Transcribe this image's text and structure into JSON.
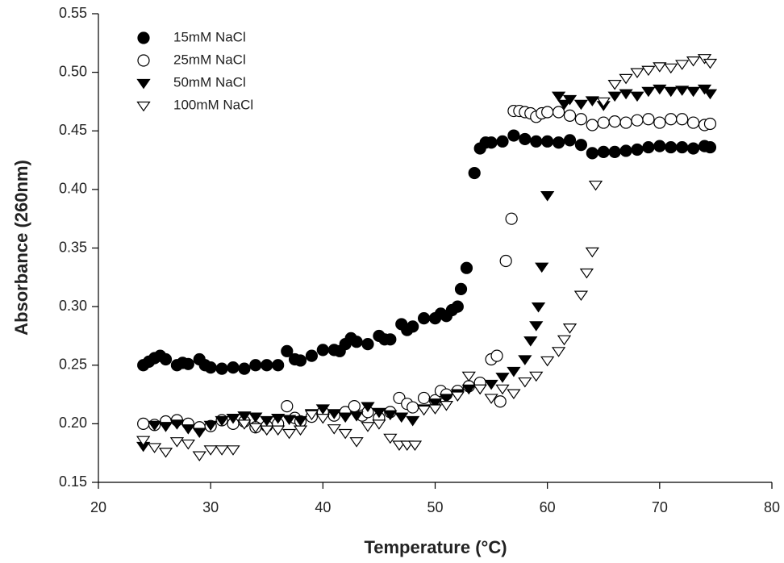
{
  "chart_data": {
    "type": "scatter",
    "x_label": "Temperature (°C)",
    "y_label": "Absorbance (260nm)",
    "xlim": [
      20,
      80
    ],
    "xticks": [
      20,
      30,
      40,
      50,
      60,
      70,
      80
    ],
    "ylim": [
      0.15,
      0.55
    ],
    "yticks": [
      0.15,
      {
        "value": 0.2,
        "label": "0.20"
      },
      0.25,
      {
        "value": 0.3,
        "label": "0.30"
      },
      0.35,
      {
        "value": 0.4,
        "label": "0.40"
      },
      0.45,
      {
        "value": 0.5,
        "label": "0.50"
      },
      0.55
    ],
    "legend": "top-left",
    "series": [
      {
        "name": "15mM NaCl",
        "color": "#000000",
        "marker": "circle",
        "filled": true,
        "x": [
          24,
          24.5,
          25,
          25.5,
          26,
          27,
          27.5,
          28,
          29,
          29.5,
          30,
          31,
          32,
          33,
          34,
          35,
          36,
          36.8,
          37.5,
          38,
          39,
          40,
          41,
          41.5,
          42,
          42.5,
          43,
          44,
          45,
          45.5,
          46,
          47,
          47.5,
          48,
          49,
          50,
          50.5,
          51,
          51.5,
          52,
          52.3,
          52.8,
          53.5,
          54,
          54.5,
          55,
          56,
          57,
          58,
          59,
          60,
          61,
          62,
          63,
          64,
          65,
          66,
          67,
          68,
          69,
          70,
          71,
          72,
          73,
          74,
          74.5
        ],
        "values": [
          0.25,
          0.253,
          0.256,
          0.258,
          0.255,
          0.25,
          0.252,
          0.251,
          0.255,
          0.25,
          0.248,
          0.247,
          0.248,
          0.247,
          0.25,
          0.25,
          0.25,
          0.262,
          0.255,
          0.254,
          0.258,
          0.263,
          0.263,
          0.262,
          0.268,
          0.273,
          0.27,
          0.268,
          0.275,
          0.272,
          0.272,
          0.285,
          0.28,
          0.283,
          0.29,
          0.29,
          0.294,
          0.292,
          0.297,
          0.3,
          0.315,
          0.333,
          0.414,
          0.435,
          0.44,
          0.44,
          0.441,
          0.446,
          0.443,
          0.441,
          0.441,
          0.44,
          0.442,
          0.438,
          0.431,
          0.432,
          0.432,
          0.433,
          0.434,
          0.436,
          0.437,
          0.436,
          0.436,
          0.435,
          0.437,
          0.436
        ]
      },
      {
        "name": "25mM NaCl",
        "color": "#000000",
        "marker": "circle",
        "filled": false,
        "x": [
          24,
          25,
          26,
          27,
          28,
          29,
          30,
          31,
          32,
          33,
          34,
          35,
          36,
          36.8,
          37.5,
          38,
          39,
          40,
          41,
          42,
          42.8,
          43.5,
          44,
          45,
          46,
          46.8,
          47.5,
          48,
          49,
          50,
          50.5,
          51,
          52,
          53,
          54,
          55,
          55.5,
          55.8,
          56.3,
          56.8,
          57,
          57.5,
          58,
          58.5,
          59,
          59.5,
          60,
          61,
          62,
          63,
          64,
          65,
          66,
          67,
          68,
          69,
          70,
          71,
          72,
          73,
          74,
          74.5
        ],
        "values": [
          0.2,
          0.199,
          0.202,
          0.203,
          0.2,
          0.197,
          0.198,
          0.203,
          0.2,
          0.202,
          0.197,
          0.198,
          0.2,
          0.215,
          0.205,
          0.202,
          0.206,
          0.21,
          0.207,
          0.21,
          0.215,
          0.207,
          0.21,
          0.205,
          0.21,
          0.222,
          0.217,
          0.214,
          0.222,
          0.22,
          0.228,
          0.225,
          0.228,
          0.232,
          0.235,
          0.255,
          0.258,
          0.219,
          0.339,
          0.375,
          0.467,
          0.467,
          0.466,
          0.465,
          0.462,
          0.465,
          0.466,
          0.466,
          0.463,
          0.46,
          0.455,
          0.457,
          0.458,
          0.457,
          0.459,
          0.46,
          0.457,
          0.46,
          0.46,
          0.457,
          0.455,
          0.456
        ]
      },
      {
        "name": "50mM NaCl",
        "color": "#000000",
        "marker": "triangle-down",
        "filled": true,
        "x": [
          24,
          25,
          26,
          27,
          28,
          29,
          30,
          31,
          32,
          33,
          34,
          35,
          36,
          37,
          38,
          39,
          40,
          41,
          42,
          43,
          44,
          45,
          46,
          47,
          48,
          49,
          50,
          51,
          52,
          53,
          54,
          55,
          56,
          57,
          58,
          58.5,
          59,
          59.2,
          59.5,
          60,
          61,
          61.5,
          62,
          63,
          64,
          65,
          66,
          67,
          68,
          69,
          70,
          71,
          72,
          73,
          74,
          74.5
        ],
        "values": [
          0.181,
          0.199,
          0.198,
          0.2,
          0.196,
          0.193,
          0.199,
          0.203,
          0.205,
          0.207,
          0.206,
          0.203,
          0.205,
          0.204,
          0.203,
          0.209,
          0.213,
          0.209,
          0.206,
          0.207,
          0.215,
          0.21,
          0.208,
          0.206,
          0.203,
          0.213,
          0.218,
          0.222,
          0.226,
          0.23,
          0.23,
          0.234,
          0.24,
          0.245,
          0.255,
          0.271,
          0.284,
          0.3,
          0.334,
          0.395,
          0.48,
          0.473,
          0.477,
          0.473,
          0.476,
          0.472,
          0.48,
          0.482,
          0.48,
          0.484,
          0.486,
          0.484,
          0.485,
          0.484,
          0.486,
          0.482
        ]
      },
      {
        "name": "100mM NaCl",
        "color": "#000000",
        "marker": "triangle-down",
        "filled": false,
        "x": [
          24,
          25,
          26,
          27,
          28,
          29,
          30,
          31,
          32,
          33,
          34,
          35,
          36,
          37,
          38,
          39,
          40,
          41,
          42,
          43,
          44,
          45,
          46,
          46.8,
          47.5,
          48.2,
          49,
          50,
          51,
          52,
          53,
          54,
          55,
          56,
          57,
          58,
          59,
          60,
          61,
          61.5,
          62,
          63,
          63.5,
          64,
          64.3,
          65,
          66,
          67,
          68,
          69,
          70,
          71,
          72,
          73,
          74,
          74.5
        ],
        "values": [
          0.186,
          0.18,
          0.176,
          0.185,
          0.183,
          0.173,
          0.178,
          0.178,
          0.178,
          0.2,
          0.197,
          0.195,
          0.195,
          0.192,
          0.195,
          0.208,
          0.205,
          0.196,
          0.192,
          0.185,
          0.198,
          0.2,
          0.188,
          0.182,
          0.182,
          0.182,
          0.212,
          0.213,
          0.216,
          0.224,
          0.241,
          0.23,
          0.222,
          0.23,
          0.226,
          0.236,
          0.241,
          0.254,
          0.262,
          0.272,
          0.282,
          0.31,
          0.329,
          0.347,
          0.404,
          0.475,
          0.49,
          0.495,
          0.5,
          0.502,
          0.505,
          0.504,
          0.507,
          0.51,
          0.512,
          0.508
        ]
      }
    ]
  }
}
